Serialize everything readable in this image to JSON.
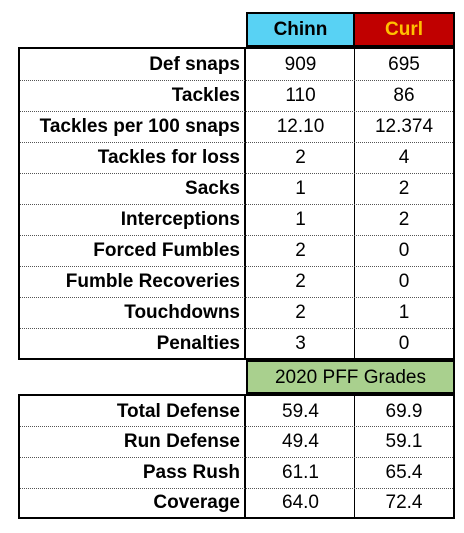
{
  "header": {
    "col1": "Chinn",
    "col2": "Curl"
  },
  "colors": {
    "chinn_header_bg": "#58d2f4",
    "curl_header_bg": "#c00000",
    "curl_header_text": "#ffc000",
    "pff_banner_bg": "#a9d08e"
  },
  "stats": [
    {
      "label": "Def snaps",
      "chinn": "909",
      "curl": "695"
    },
    {
      "label": "Tackles",
      "chinn": "110",
      "curl": "86"
    },
    {
      "label": "Tackles per 100 snaps",
      "chinn": "12.10",
      "curl": "12.374"
    },
    {
      "label": "Tackles for loss",
      "chinn": "2",
      "curl": "4"
    },
    {
      "label": "Sacks",
      "chinn": "1",
      "curl": "2"
    },
    {
      "label": "Interceptions",
      "chinn": "1",
      "curl": "2"
    },
    {
      "label": "Forced Fumbles",
      "chinn": "2",
      "curl": "0"
    },
    {
      "label": "Fumble Recoveries",
      "chinn": "2",
      "curl": "0"
    },
    {
      "label": "Touchdowns",
      "chinn": "2",
      "curl": "1"
    },
    {
      "label": "Penalties",
      "chinn": "3",
      "curl": "0"
    }
  ],
  "pff": {
    "title": "2020 PFF Grades",
    "rows": [
      {
        "label": "Total Defense",
        "chinn": "59.4",
        "curl": "69.9"
      },
      {
        "label": "Run Defense",
        "chinn": "49.4",
        "curl": "59.1"
      },
      {
        "label": "Pass Rush",
        "chinn": "61.1",
        "curl": "65.4"
      },
      {
        "label": "Coverage",
        "chinn": "64.0",
        "curl": "72.4"
      }
    ]
  }
}
